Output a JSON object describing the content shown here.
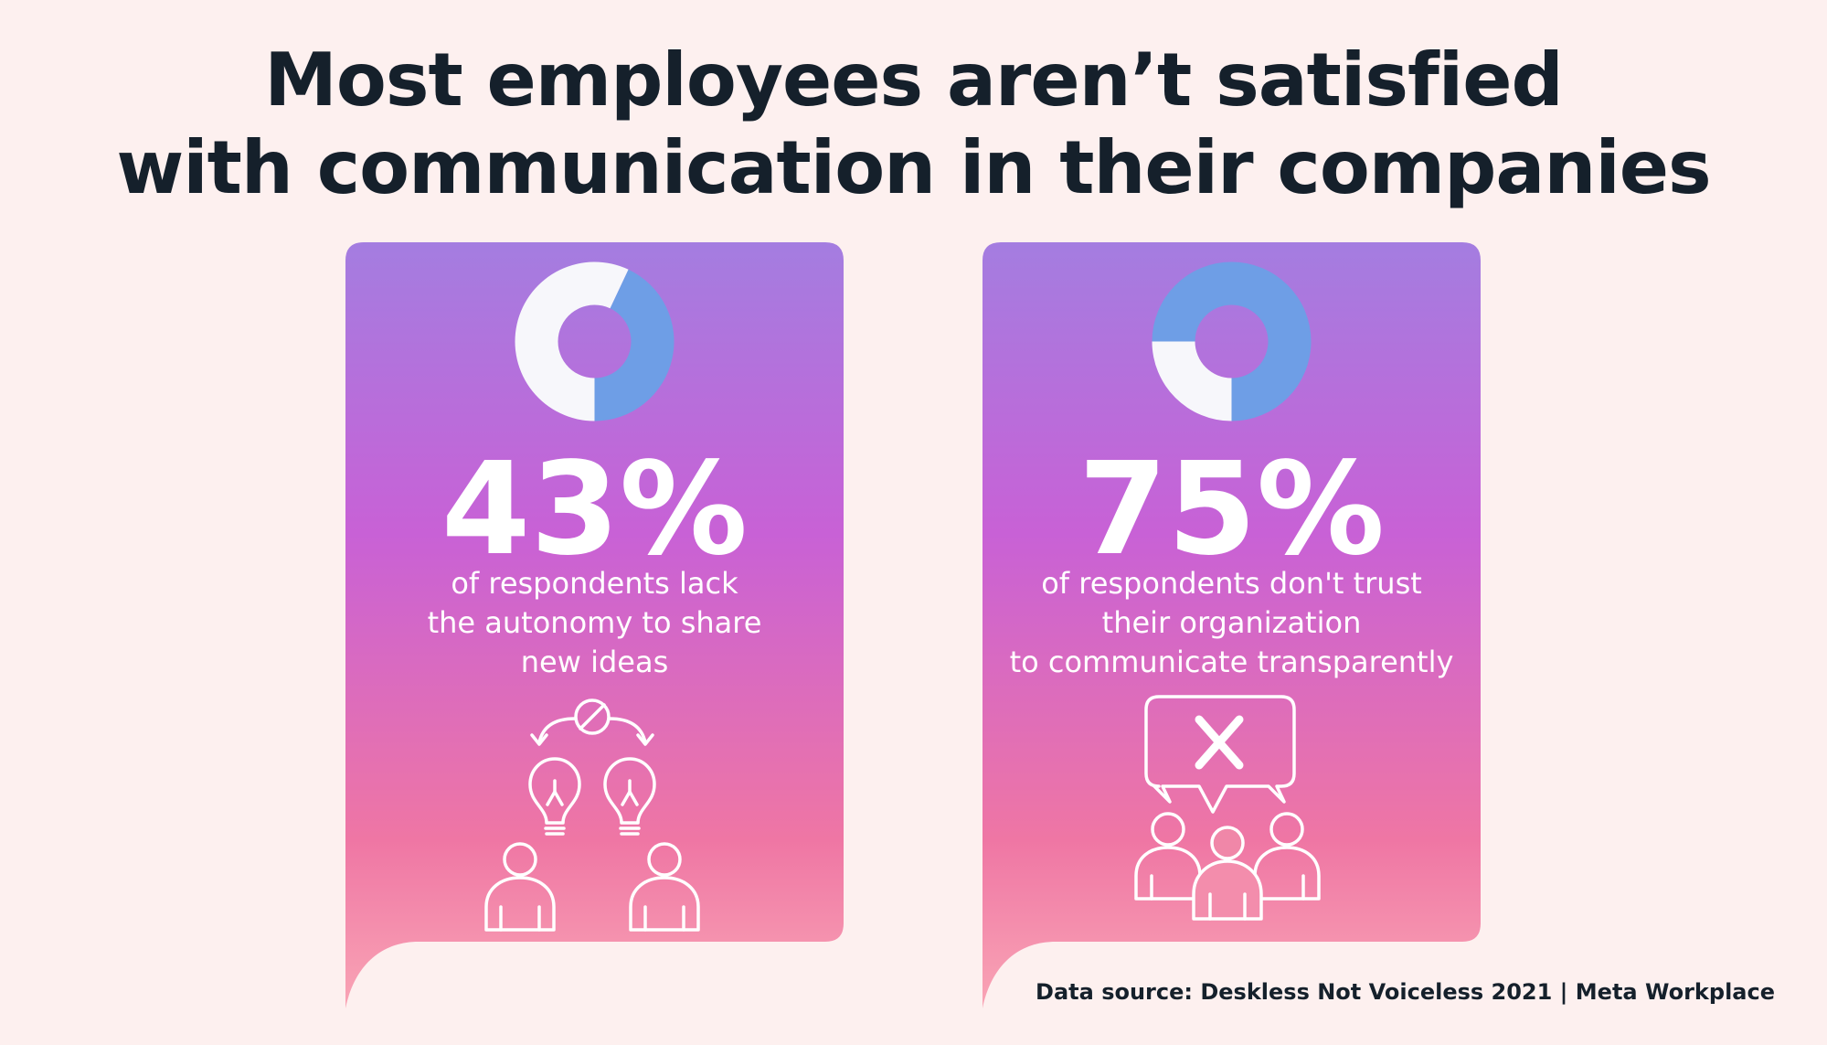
{
  "title": {
    "line1": "Most employees aren’t satisfied",
    "line2": "with communication in their companies"
  },
  "cards": [
    {
      "percent_label": "43%",
      "description_lines": [
        "of respondents lack",
        "the autonomy to share",
        "new ideas"
      ],
      "icon": "lightbulb-ideas-blocked-icon"
    },
    {
      "percent_label": "75%",
      "description_lines": [
        "of respondents don't trust",
        "their organization",
        "to communicate transparently"
      ],
      "icon": "group-distrust-speech-bubble-icon"
    }
  ],
  "source": "Data source:  Deskless Not Voiceless 2021 | Meta Workplace",
  "colors": {
    "background": "#fdf0ef",
    "title": "#15202b",
    "card_gradient": [
      "#a47de0",
      "#c861d6",
      "#ef76a4",
      "#f9a5b5"
    ],
    "donut_highlight": "#6e9ee6",
    "donut_rest": "#f7f7fb"
  },
  "chart_data": [
    {
      "type": "pie",
      "values": [
        43,
        57
      ],
      "highlight_color": "#6e9ee6",
      "rest_color": "#f7f7fb"
    },
    {
      "type": "pie",
      "values": [
        75,
        25
      ],
      "highlight_color": "#6e9ee6",
      "rest_color": "#f7f7fb"
    }
  ]
}
